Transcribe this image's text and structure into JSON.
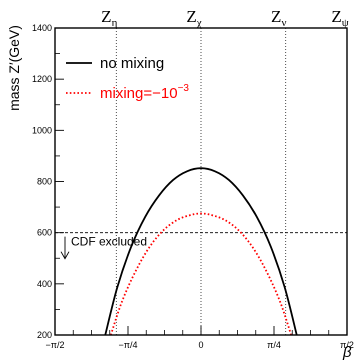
{
  "chart_data": {
    "type": "line",
    "xlabel": "β",
    "ylabel": "mass Z′(GeV)",
    "xlim": [
      -1.5708,
      1.5708
    ],
    "ylim": [
      200,
      1400
    ],
    "x_ticks": [
      {
        "value": -1.5708,
        "label": "−π/2"
      },
      {
        "value": -0.7854,
        "label": "−π/4"
      },
      {
        "value": 0,
        "label": "0"
      },
      {
        "value": 0.7854,
        "label": "π/4"
      },
      {
        "value": 1.5708,
        "label": "π/2"
      }
    ],
    "y_ticks": [
      200,
      400,
      600,
      800,
      1000,
      1200,
      1400
    ],
    "legend_position": "top-left",
    "series": [
      {
        "name": "no mixing",
        "color": "#000000",
        "style": "solid",
        "x": [
          -1.03,
          -0.9,
          -0.75,
          -0.6,
          -0.45,
          -0.3,
          -0.15,
          0.0,
          0.15,
          0.3,
          0.45,
          0.6,
          0.75,
          0.9,
          1.03
        ],
        "y": [
          200,
          387,
          546,
          662,
          746,
          806,
          840,
          852,
          840,
          806,
          746,
          662,
          546,
          387,
          200
        ]
      },
      {
        "name_prefix": "mixing=",
        "name_value": "−10",
        "name_exponent": "−3",
        "color": "#ff0000",
        "style": "dotted",
        "x": [
          -0.97,
          -0.85,
          -0.7,
          -0.55,
          -0.4,
          -0.25,
          -0.1,
          0.0,
          0.1,
          0.25,
          0.4,
          0.55,
          0.7,
          0.85,
          0.97
        ],
        "y": [
          200,
          331,
          452,
          546,
          611,
          651,
          670,
          675,
          670,
          651,
          611,
          546,
          452,
          331,
          200
        ]
      }
    ],
    "exclusion": {
      "value": 600,
      "label": "CDF excluded",
      "style": "dashed"
    },
    "model_lines": [
      {
        "x": -0.9117,
        "base": "Z",
        "sub": "η"
      },
      {
        "x": 0,
        "base": "Z",
        "sub": "χ"
      },
      {
        "x": 0.9117,
        "base": "Z",
        "sub": "ν"
      },
      {
        "x": 1.5708,
        "base": "Z",
        "sub": "ψ"
      }
    ]
  }
}
